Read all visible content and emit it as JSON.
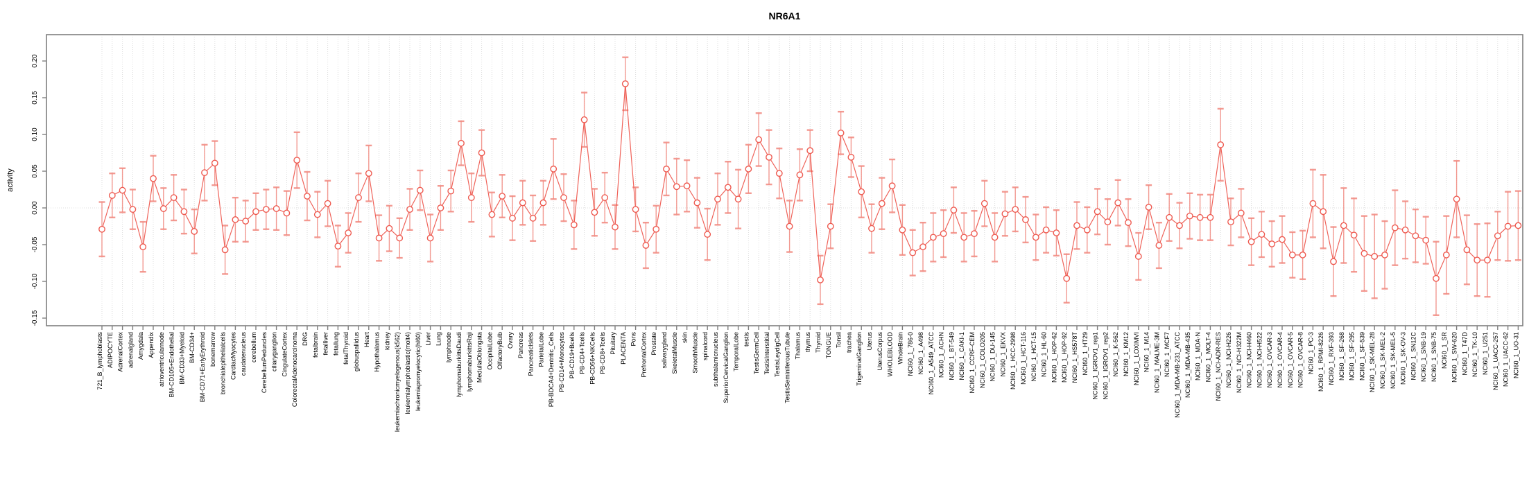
{
  "page": {
    "background": "#ffffff"
  },
  "chart_data": {
    "type": "line",
    "title": "NR6A1",
    "xlabel": "",
    "ylabel": "activity",
    "grid": true,
    "legend": "none",
    "point_marker": "open-circle",
    "error_bars": true,
    "ylim": [
      -0.16,
      0.235
    ],
    "yticks": [
      "-0.15",
      "-0.10",
      "-0.05",
      "0.00",
      "0.05",
      "0.10",
      "0.15",
      "0.20"
    ],
    "colors": {
      "series": "#ee5a50",
      "error_bar": "#f1887f",
      "grid": "#dcdcdc",
      "axis": "#7f7f7f",
      "text": "#000000",
      "background": "#ffffff"
    },
    "categories": [
      "721_B_lymphoblasts",
      "ADIPOCYTE",
      "AdrenalCortex",
      "adrenalgland",
      "Amygdala",
      "Appendix",
      "atrioventricularnode",
      "BM-CD105+Endothelial",
      "BM-CD33+Myeloid",
      "BM-CD34+",
      "BM-CD71+EarlyErythroid",
      "bonemarrow",
      "bronchialepithelialcells",
      "CardiacMyocytes",
      "caudatenucleus",
      "cerebellum",
      "CerebellumPeduncles",
      "ciliaryganglion",
      "CingulateCortex",
      "ColorectalAdenocarcinoma",
      "DRG",
      "fetalbrain",
      "fetalliver",
      "fetallung",
      "fetalThyroid",
      "globuspallidus",
      "Heart",
      "Hypothalamus",
      "kidney",
      "leukemiachronicmyelogenous(k562)",
      "leukemialymphoblastic(molt4)",
      "leukemiapromyelocytic(hl60)",
      "Liver",
      "Lung",
      "lymphnode",
      "lymphomaburkittsDaudi",
      "lymphomaburkittsRaji",
      "MedullaOblongata",
      "OccipitalLobe",
      "OlfactoryBulb",
      "Ovary",
      "Pancreas",
      "PancreaticIslets",
      "ParietalLobe",
      "PB-BDCA4+Dentritic_Cells",
      "PB-CD14+Monocytes",
      "PB-CD19+Bcells",
      "PB-CD4+Tcells",
      "PB-CD56+NKCells",
      "PB-CD8+Tcells",
      "Pituitary",
      "PLACENTA",
      "Pons",
      "PrefrontalCortex",
      "Prostate",
      "salivarygland",
      "SkeletalMuscle",
      "skin",
      "SmoothMuscle",
      "spinalcord",
      "subthalamicnucleus",
      "SuperiorCervicalGanglion",
      "TemporalLobe",
      "testis",
      "TestisGermCell",
      "TestisInterstitial",
      "TestisLeydigCell",
      "TestisSeminiferousTubule",
      "Thalamus",
      "thymus",
      "Thyroid",
      "TONGUE",
      "Tonsil",
      "trachea",
      "TrigeminalGanglion",
      "Uterus",
      "UterusCorpus",
      "WHOLEBLOOD",
      "WholeBrain",
      "NCI60_1_786-0",
      "NCI60_1_A498",
      "NCI60_1_A549_ATCC",
      "NCI60_1_ACHN",
      "NCI60_1_BT-549",
      "NCI60_1_CAKI-1",
      "NCI60_1_CCRF-CEM",
      "NCI60_1_COLO205",
      "NCI60_1_DU-145",
      "NCI60_1_EKVX",
      "NCI60_1_HCC-2998",
      "NCI60_1_HCT-116",
      "NCI60_1_HCT-15",
      "NCI60_1_HL-60",
      "NCI60_1_HOP-62",
      "NCI60_1_HOP-92",
      "NCI60_1_HS578T",
      "NCI60_1_HT29",
      "NCI60_1_IGROV1_rep1",
      "NCI60_1_IGROV1_rep2",
      "NCI60_1_K-562",
      "NCI60_1_KM12",
      "NCI60_1_LOXIMVI",
      "NCI60_1_M14",
      "NCI60_1_MALME-3M",
      "NCI60_1_MCF7",
      "NCI60_1_MDA-MB-231_ATCC",
      "NCI60_1_MDA-MB-435",
      "NCI60_1_MDA-N",
      "NCI60_1_MOLT-4",
      "NCI60_1_NCI-ADR-RES",
      "NCI60_1_NCI-H226",
      "NCI60_1_NCI-H322M",
      "NCI60_1_NCI-H460",
      "NCI60_1_NCI-H522",
      "NCI60_1_OVCAR-3",
      "NCI60_1_OVCAR-4",
      "NCI60_1_OVCAR-5",
      "NCI60_1_OVCAR-8",
      "NCI60_1_PC-3",
      "NCI60_1_RPMI-8226",
      "NCI60_1_RXF-393",
      "NCI60_1_SF-268",
      "NCI60_1_SF-295",
      "NCI60_1_SF-539",
      "NCI60_1_SK-MEL-28",
      "NCI60_1_SK-MEL-2",
      "NCI60_1_SK-MEL-5",
      "NCI60_1_SK-OV-3",
      "NCI60_1_SN12C",
      "NCI60_1_SNB-19",
      "NCI60_1_SNB-75",
      "NCI60_1_SR",
      "NCI60_1_SW-620",
      "NCI60_1_T47D",
      "NCI60_1_TK-10",
      "NCI60_1_U251",
      "NCI60_1_UACC-257",
      "NCI60_1_UACC-62",
      "NCI60_1_UO-31"
    ],
    "series": [
      {
        "name": "activity",
        "values": [
          -0.029,
          0.017,
          0.024,
          -0.002,
          -0.053,
          0.04,
          -0.001,
          0.014,
          -0.005,
          -0.032,
          0.048,
          0.061,
          -0.057,
          -0.016,
          -0.018,
          -0.005,
          -0.002,
          -0.001,
          -0.007,
          0.065,
          0.016,
          -0.009,
          0.006,
          -0.052,
          -0.034,
          0.014,
          0.047,
          -0.041,
          -0.028,
          -0.041,
          -0.002,
          0.024,
          -0.041,
          0.0,
          0.023,
          0.088,
          0.014,
          0.075,
          -0.009,
          0.016,
          -0.014,
          0.007,
          -0.014,
          0.007,
          0.053,
          0.014,
          -0.023,
          0.12,
          -0.006,
          0.014,
          -0.026,
          0.169,
          -0.002,
          -0.051,
          -0.029,
          0.053,
          0.029,
          0.03,
          0.007,
          -0.036,
          0.012,
          0.028,
          0.012,
          0.053,
          0.093,
          0.069,
          0.047,
          -0.025,
          0.045,
          0.078,
          -0.098,
          -0.025,
          0.102,
          0.069,
          0.022,
          -0.028,
          0.006,
          0.03,
          -0.03,
          -0.061,
          -0.053,
          -0.04,
          -0.035,
          -0.003,
          -0.04,
          -0.035,
          0.006,
          -0.04,
          -0.008,
          -0.002,
          -0.016,
          -0.04,
          -0.03,
          -0.034,
          -0.096,
          -0.024,
          -0.03,
          -0.005,
          -0.019,
          0.007,
          -0.02,
          -0.066,
          0.001,
          -0.051,
          -0.013,
          -0.024,
          -0.011,
          -0.013,
          -0.013,
          0.086,
          -0.019,
          -0.007,
          -0.046,
          -0.036,
          -0.049,
          -0.043,
          -0.064,
          -0.064,
          0.006,
          -0.005,
          -0.073,
          -0.024,
          -0.037,
          -0.062,
          -0.066,
          -0.064,
          -0.027,
          -0.03,
          -0.038,
          -0.044,
          -0.096,
          -0.064,
          0.012,
          -0.057,
          -0.071,
          -0.071,
          -0.038,
          -0.025,
          -0.024
        ],
        "errors": [
          0.037,
          0.03,
          0.03,
          0.027,
          0.034,
          0.031,
          0.028,
          0.031,
          0.03,
          0.03,
          0.038,
          0.03,
          0.033,
          0.03,
          0.028,
          0.025,
          0.027,
          0.029,
          0.03,
          0.038,
          0.033,
          0.031,
          0.031,
          0.028,
          0.027,
          0.033,
          0.038,
          0.031,
          0.031,
          0.027,
          0.028,
          0.027,
          0.032,
          0.03,
          0.028,
          0.03,
          0.033,
          0.031,
          0.03,
          0.029,
          0.03,
          0.03,
          0.031,
          0.03,
          0.041,
          0.032,
          0.033,
          0.037,
          0.032,
          0.034,
          0.03,
          0.036,
          0.03,
          0.031,
          0.032,
          0.036,
          0.038,
          0.035,
          0.034,
          0.035,
          0.035,
          0.035,
          0.04,
          0.033,
          0.036,
          0.037,
          0.034,
          0.035,
          0.035,
          0.028,
          0.033,
          0.03,
          0.029,
          0.027,
          0.035,
          0.033,
          0.035,
          0.036,
          0.034,
          0.031,
          0.033,
          0.033,
          0.032,
          0.031,
          0.033,
          0.031,
          0.031,
          0.033,
          0.03,
          0.03,
          0.031,
          0.031,
          0.031,
          0.031,
          0.033,
          0.032,
          0.031,
          0.031,
          0.031,
          0.031,
          0.032,
          0.032,
          0.03,
          0.031,
          0.032,
          0.031,
          0.031,
          0.031,
          0.031,
          0.049,
          0.032,
          0.033,
          0.032,
          0.031,
          0.031,
          0.032,
          0.031,
          0.033,
          0.046,
          0.05,
          0.047,
          0.051,
          0.05,
          0.051,
          0.057,
          0.046,
          0.051,
          0.039,
          0.036,
          0.032,
          0.05,
          0.053,
          0.052,
          0.047,
          0.049,
          0.05,
          0.033,
          0.047,
          0.047
        ]
      }
    ]
  }
}
